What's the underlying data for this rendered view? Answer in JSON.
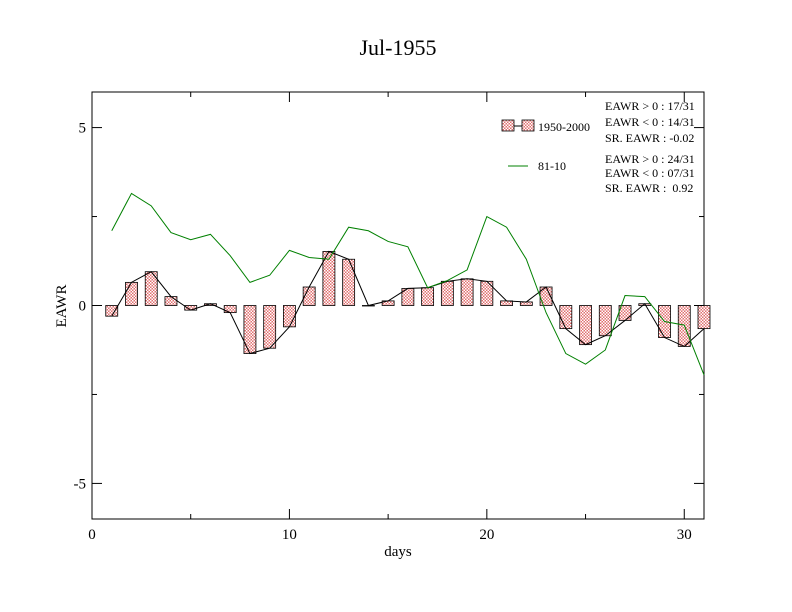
{
  "chart_data": {
    "type": "bar",
    "title": "Jul-1955",
    "xlabel": "days",
    "ylabel": "EAWR",
    "xlim": [
      0,
      31
    ],
    "ylim": [
      -6,
      6
    ],
    "xticks": [
      0,
      10,
      20,
      30
    ],
    "yticks": [
      -5,
      0,
      5
    ],
    "x": [
      1,
      2,
      3,
      4,
      5,
      6,
      7,
      8,
      9,
      10,
      11,
      12,
      13,
      14,
      15,
      16,
      17,
      18,
      19,
      20,
      21,
      22,
      23,
      24,
      25,
      26,
      27,
      28,
      29,
      30,
      31
    ],
    "series": [
      {
        "name": "1950-2000",
        "kind": "bar",
        "color": "#e06666",
        "values": [
          -0.3,
          0.65,
          0.95,
          0.25,
          -0.13,
          0.05,
          -0.2,
          -1.35,
          -1.2,
          -0.6,
          0.52,
          1.52,
          1.3,
          0.0,
          0.13,
          0.48,
          0.5,
          0.68,
          0.75,
          0.68,
          0.13,
          0.1,
          0.52,
          -0.65,
          -1.1,
          -0.85,
          -0.42,
          0.05,
          -0.9,
          -1.15,
          -0.65
        ]
      },
      {
        "name": "81-10",
        "kind": "line",
        "color": "#008000",
        "values": [
          2.1,
          3.15,
          2.8,
          2.05,
          1.85,
          2.0,
          1.4,
          0.65,
          0.85,
          1.55,
          1.35,
          1.3,
          2.2,
          2.1,
          1.8,
          1.65,
          0.5,
          0.7,
          1.0,
          2.5,
          2.2,
          1.3,
          -0.2,
          -1.35,
          -1.65,
          -1.25,
          0.28,
          0.25,
          -0.45,
          -0.55,
          -1.95
        ]
      }
    ],
    "legend": {
      "placement": "top-right",
      "stats_1950": [
        "EAWR > 0 : 17/31",
        "EAWR < 0 : 14/31",
        "SR. EAWR : -0.02"
      ],
      "stats_8110": [
        "EAWR > 0 : 24/31",
        "EAWR < 0 : 07/31",
        "SR. EAWR :  0.92"
      ]
    }
  }
}
